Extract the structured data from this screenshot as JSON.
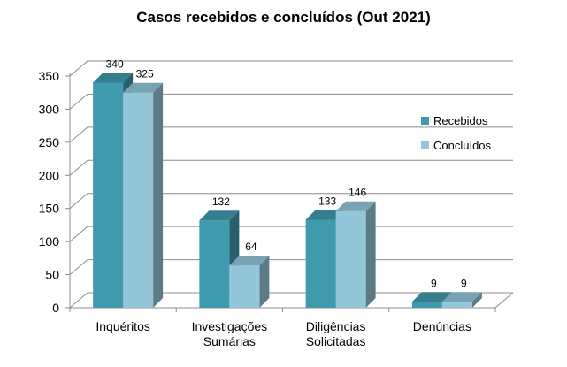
{
  "chart_data": {
    "type": "bar",
    "title": "Casos recebidos e concluídos (Out 2021)",
    "categories": [
      [
        "Inquéritos"
      ],
      [
        "Investigações",
        "Sumárias"
      ],
      [
        "Diligências",
        "Solicitadas"
      ],
      [
        "Denúncias"
      ]
    ],
    "series": [
      {
        "name": "Recebidos",
        "values": [
          340,
          132,
          133,
          9
        ],
        "color": "#3f9aad"
      },
      {
        "name": "Concluídos",
        "values": [
          325,
          64,
          146,
          9
        ],
        "color": "#93c6d9"
      }
    ],
    "ylim": [
      0,
      350
    ],
    "yticks": [
      0,
      50,
      100,
      150,
      200,
      250,
      300,
      350
    ],
    "grid": true,
    "legend_position": "right"
  }
}
